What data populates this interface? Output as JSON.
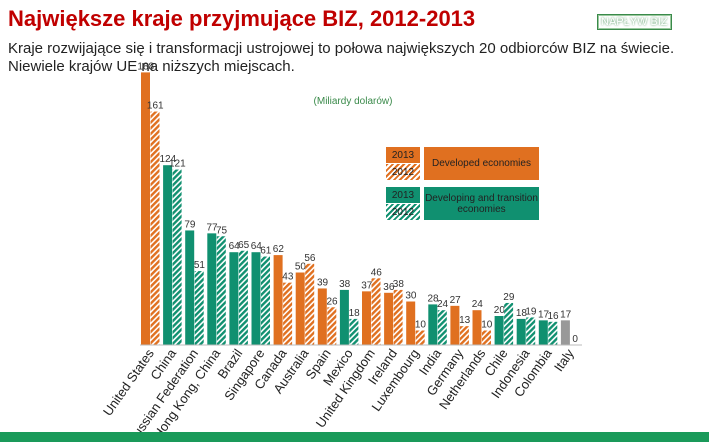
{
  "chart_data": {
    "type": "bar",
    "title": "Największe kraje przyjmujące BIZ, 2012-2013",
    "subtitle": "Kraje rozwijające się i transformacji ustrojowej to połowa największych 20 odbiorców BIZ na świecie. Niewiele krajów UE na niższych miejscach.",
    "button": "NAPŁYW BIZ",
    "unit_label": "(Miliardy dolarów)",
    "categories": [
      "United States",
      "China",
      "Russian Federation",
      "Hong Kong, China",
      "Brazil",
      "Singapore",
      "Canada",
      "Australia",
      "Spain",
      "Mexico",
      "United Kingdom",
      "Ireland",
      "Luxembourg",
      "India",
      "Germany",
      "Netherlands",
      "Chile",
      "Indonesia",
      "Colombia",
      "Italy"
    ],
    "colors": [
      "#e07020",
      "#109070",
      "#109070",
      "#109070",
      "#109070",
      "#109070",
      "#e07020",
      "#e07020",
      "#e07020",
      "#109070",
      "#e07020",
      "#e07020",
      "#e07020",
      "#109070",
      "#e07020",
      "#e07020",
      "#109070",
      "#109070",
      "#109070",
      "#999999"
    ],
    "series": [
      {
        "name": "2013",
        "values": [
          188,
          124,
          79,
          77,
          64,
          64,
          62,
          50,
          39,
          38,
          37,
          36,
          30,
          28,
          27,
          24,
          20,
          18,
          17,
          17
        ]
      },
      {
        "name": "2012",
        "values": [
          161,
          121,
          51,
          75,
          65,
          61,
          43,
          56,
          26,
          18,
          46,
          38,
          10,
          24,
          13,
          10,
          29,
          19,
          16,
          0
        ]
      }
    ],
    "legend_groups": [
      {
        "name": "Developed economies",
        "color": "#e07020"
      },
      {
        "name": "Developing and transition economies",
        "color": "#109070"
      }
    ]
  }
}
